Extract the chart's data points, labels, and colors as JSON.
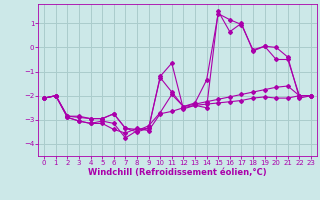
{
  "xlabel": "Windchill (Refroidissement éolien,°C)",
  "background_color": "#cce8e8",
  "grid_color": "#aacccc",
  "line_color": "#aa00aa",
  "xlim": [
    -0.5,
    23.5
  ],
  "ylim": [
    -4.5,
    1.8
  ],
  "yticks": [
    -4,
    -3,
    -2,
    -1,
    0,
    1
  ],
  "xticks": [
    0,
    1,
    2,
    3,
    4,
    5,
    6,
    7,
    8,
    9,
    10,
    11,
    12,
    13,
    14,
    15,
    16,
    17,
    18,
    19,
    20,
    21,
    22,
    23
  ],
  "series1_x": [
    0,
    1,
    2,
    3,
    4,
    5,
    6,
    7,
    8,
    9,
    10,
    11,
    12,
    13,
    14,
    15,
    16,
    17,
    18,
    19,
    20,
    21,
    22,
    23
  ],
  "series1_y": [
    -2.1,
    -2.0,
    -2.9,
    -3.05,
    -3.15,
    -3.15,
    -3.4,
    -3.55,
    -3.35,
    -3.45,
    -2.75,
    -2.65,
    -2.5,
    -2.4,
    -2.35,
    -2.3,
    -2.25,
    -2.2,
    -2.1,
    -2.05,
    -2.1,
    -2.1,
    -2.0,
    -2.0
  ],
  "series2_x": [
    0,
    1,
    2,
    3,
    4,
    5,
    6,
    7,
    8,
    9,
    10,
    11,
    12,
    13,
    14,
    15,
    16,
    17,
    18,
    19,
    20,
    21,
    22,
    23
  ],
  "series2_y": [
    -2.1,
    -2.0,
    -2.9,
    -3.05,
    -3.15,
    -3.05,
    -3.15,
    -3.75,
    -3.45,
    -3.25,
    -2.7,
    -1.95,
    -2.45,
    -2.35,
    -2.25,
    -2.15,
    -2.05,
    -1.95,
    -1.85,
    -1.75,
    -1.65,
    -1.6,
    -2.0,
    -2.0
  ],
  "series3_x": [
    0,
    1,
    2,
    3,
    4,
    5,
    6,
    7,
    8,
    9,
    10,
    11,
    12,
    13,
    14,
    15,
    16,
    17,
    18,
    19,
    20,
    21,
    22,
    23
  ],
  "series3_y": [
    -2.1,
    -2.0,
    -2.85,
    -2.85,
    -2.95,
    -2.95,
    -2.75,
    -3.35,
    -3.4,
    -3.35,
    -1.25,
    -1.85,
    -2.45,
    -2.3,
    -1.35,
    1.4,
    1.15,
    0.95,
    -0.1,
    0.05,
    -0.5,
    -0.5,
    -2.0,
    -2.0
  ],
  "series4_x": [
    0,
    1,
    2,
    3,
    4,
    5,
    6,
    7,
    8,
    9,
    10,
    11,
    12,
    13,
    14,
    15,
    16,
    17,
    18,
    19,
    20,
    21,
    22,
    23
  ],
  "series4_y": [
    -2.1,
    -2.0,
    -2.85,
    -2.9,
    -2.95,
    -2.95,
    -2.75,
    -3.35,
    -3.5,
    -3.35,
    -1.2,
    -0.65,
    -2.55,
    -2.4,
    -2.5,
    1.5,
    0.65,
    1.0,
    -0.15,
    0.05,
    0.0,
    -0.4,
    -2.1,
    -2.0
  ]
}
